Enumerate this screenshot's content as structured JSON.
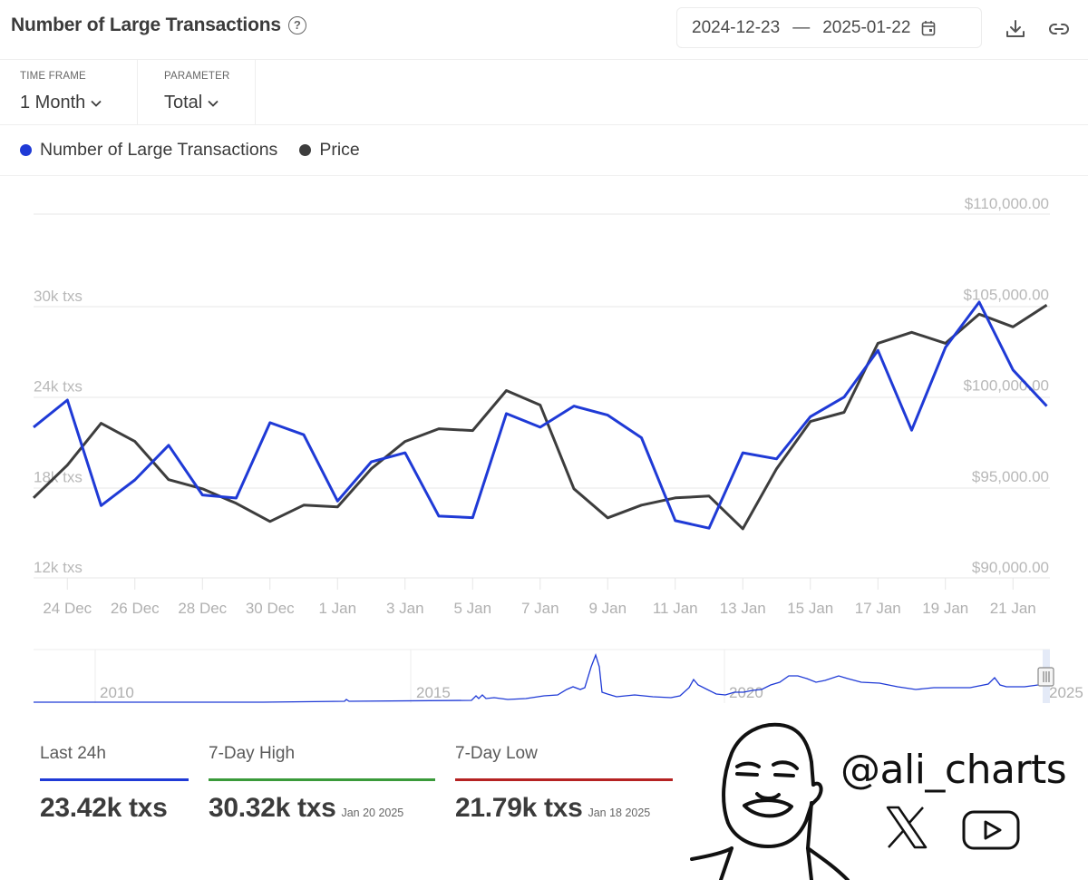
{
  "header": {
    "title": "Number of Large Transactions",
    "help_icon": "question-circle-icon",
    "date_start": "2024-12-23",
    "date_separator": "—",
    "date_end": "2025-01-22",
    "calendar_icon": "calendar-icon",
    "download_icon": "download-icon",
    "link_icon": "link-icon"
  },
  "filters": {
    "time_frame": {
      "label": "TIME FRAME",
      "value": "1 Month"
    },
    "parameter": {
      "label": "PARAMETER",
      "value": "Total"
    }
  },
  "legend": [
    {
      "label": "Number of Large Transactions",
      "color": "#1f3ad6"
    },
    {
      "label": "Price",
      "color": "#3d3d3d"
    }
  ],
  "chart_data": {
    "type": "line",
    "title": "Number of Large Transactions",
    "x": [
      "23 Dec",
      "24 Dec",
      "25 Dec",
      "26 Dec",
      "27 Dec",
      "28 Dec",
      "29 Dec",
      "30 Dec",
      "31 Dec",
      "1 Jan",
      "2 Jan",
      "3 Jan",
      "4 Jan",
      "5 Jan",
      "6 Jan",
      "7 Jan",
      "8 Jan",
      "9 Jan",
      "10 Jan",
      "11 Jan",
      "12 Jan",
      "13 Jan",
      "14 Jan",
      "15 Jan",
      "16 Jan",
      "17 Jan",
      "18 Jan",
      "19 Jan",
      "20 Jan",
      "21 Jan",
      "22 Jan"
    ],
    "x_tick_labels": [
      "24 Dec",
      "26 Dec",
      "28 Dec",
      "30 Dec",
      "1 Jan",
      "3 Jan",
      "5 Jan",
      "7 Jan",
      "9 Jan",
      "11 Jan",
      "13 Jan",
      "15 Jan",
      "17 Jan",
      "19 Jan",
      "21 Jan"
    ],
    "series": [
      {
        "name": "Number of Large Transactions",
        "axis": "left",
        "color": "#1f3ad6",
        "unit": "k txs",
        "values": [
          22.0,
          23.8,
          16.8,
          18.5,
          20.8,
          17.5,
          17.3,
          22.3,
          21.5,
          17.1,
          19.7,
          20.3,
          16.1,
          16.0,
          22.9,
          22.0,
          23.4,
          22.8,
          21.3,
          15.8,
          15.3,
          20.3,
          19.9,
          22.7,
          24.0,
          27.1,
          21.8,
          27.3,
          30.3,
          25.8,
          23.4
        ]
      },
      {
        "name": "Price",
        "axis": "right",
        "color": "#3d3d3d",
        "unit": "USD",
        "values": [
          94400,
          96200,
          98500,
          97500,
          95400,
          94900,
          94100,
          93100,
          94000,
          93900,
          96000,
          97500,
          98200,
          98100,
          100300,
          99500,
          94900,
          93300,
          94000,
          94400,
          94500,
          92700,
          96000,
          98600,
          99100,
          102900,
          103500,
          102900,
          104500,
          103800,
          105000
        ]
      }
    ],
    "left_axis": {
      "ticks": [
        "12k txs",
        "18k txs",
        "24k txs",
        "30k txs"
      ],
      "tick_values": [
        12,
        18,
        24,
        30
      ],
      "range": [
        12,
        36
      ]
    },
    "right_axis": {
      "ticks": [
        "$90,000.00",
        "$95,000.00",
        "$100,000.00",
        "$105,000.00",
        "$110,000.00"
      ],
      "tick_values": [
        90000,
        95000,
        100000,
        105000,
        110000
      ],
      "range": [
        90000,
        110000
      ]
    },
    "grid": true,
    "legend_position": "top-left"
  },
  "navigator": {
    "year_labels": [
      "2010",
      "2015",
      "2020",
      "2025"
    ]
  },
  "stats": [
    {
      "label": "Last 24h",
      "value": "23.42k txs",
      "date": "",
      "color": "#1f3ad6"
    },
    {
      "label": "7-Day High",
      "value": "30.32k txs",
      "date": "Jan 20 2025",
      "color": "#3a9a3a"
    },
    {
      "label": "7-Day Low",
      "value": "21.79k txs",
      "date": "Jan 18 2025",
      "color": "#b52222"
    }
  ],
  "watermark": {
    "handle": "@ali_charts",
    "icons": [
      "x-logo-icon",
      "youtube-icon"
    ]
  }
}
